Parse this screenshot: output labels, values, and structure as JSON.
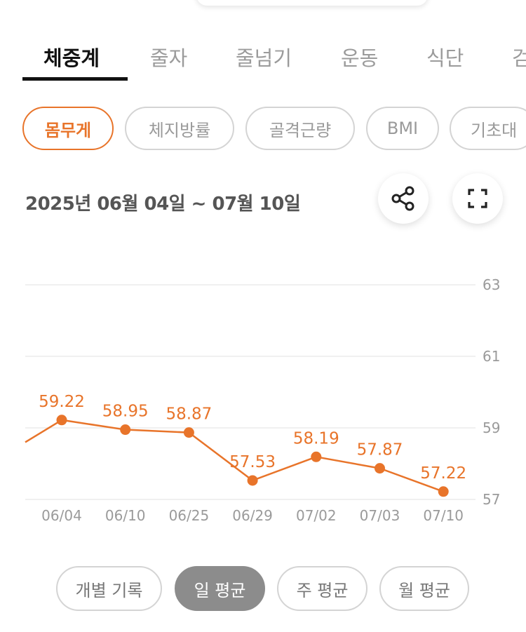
{
  "tabs": [
    {
      "label": "체중계",
      "active": true
    },
    {
      "label": "줄자",
      "active": false
    },
    {
      "label": "줄넘기",
      "active": false
    },
    {
      "label": "운동",
      "active": false
    },
    {
      "label": "식단",
      "active": false
    },
    {
      "label": "검",
      "active": false
    }
  ],
  "chips": [
    {
      "label": "몸무게",
      "active": true
    },
    {
      "label": "체지방률",
      "active": false
    },
    {
      "label": "골격근량",
      "active": false
    },
    {
      "label": "BMI",
      "active": false
    },
    {
      "label": "기초대",
      "active": false
    }
  ],
  "date_range": "2025년 06월 04일 ~ 07월 10일",
  "icons": {
    "share": "share-icon",
    "expand": "expand-icon"
  },
  "colors": {
    "accent": "#e8742a",
    "selected_segment": "#8c8c8c"
  },
  "chart_data": {
    "type": "line",
    "categories": [
      "06/04",
      "06/10",
      "06/25",
      "06/29",
      "07/02",
      "07/03",
      "07/10"
    ],
    "values": [
      59.22,
      58.95,
      58.87,
      57.53,
      58.19,
      57.87,
      57.22
    ],
    "value_labels": [
      "59.22",
      "58.95",
      "58.87",
      "57.53",
      "58.19",
      "57.87",
      "57.22"
    ],
    "y_ticks": [
      "63",
      "61",
      "59",
      "57"
    ],
    "ylim": [
      57,
      63
    ],
    "grid": true,
    "color": "#e8742a",
    "continues_left_from_value": 58.6
  },
  "segments": [
    {
      "label": "개별 기록",
      "active": false
    },
    {
      "label": "일 평균",
      "active": true
    },
    {
      "label": "주 평균",
      "active": false
    },
    {
      "label": "월 평균",
      "active": false
    }
  ]
}
